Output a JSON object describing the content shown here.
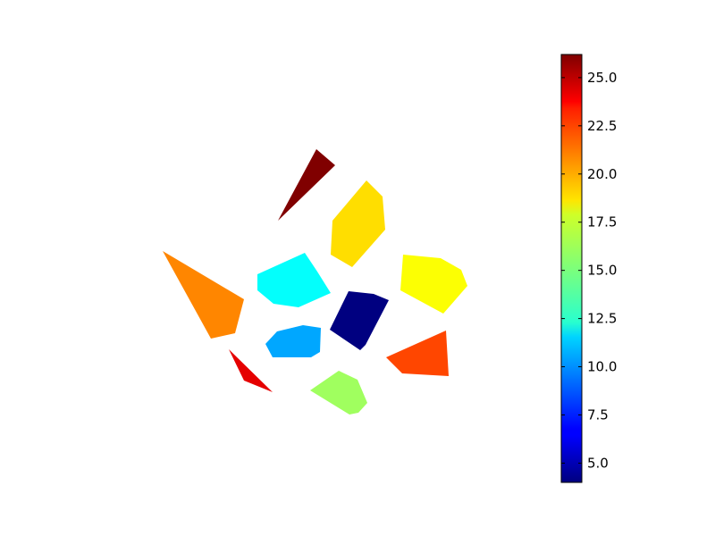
{
  "chart_data": {
    "type": "polygon-colormap",
    "title": "",
    "colormap": "jet",
    "colorbar": {
      "range": [
        4.0,
        26.2
      ],
      "ticks": [
        5.0,
        7.5,
        10.0,
        12.5,
        15.0,
        17.5,
        20.0,
        22.5,
        25.0
      ],
      "tick_labels": [
        "5.0",
        "7.5",
        "10.0",
        "12.5",
        "15.0",
        "17.5",
        "20.0",
        "22.5",
        "25.0"
      ]
    },
    "axes_visible": false,
    "polygons": [
      {
        "id": "dark-red-triangle",
        "value": 26.2,
        "vertices": [
          [
            354,
            167
          ],
          [
            375,
            185
          ],
          [
            311,
            247
          ]
        ]
      },
      {
        "id": "yellow-hexagon-top",
        "value": 18.6,
        "vertices": [
          [
            372,
            247
          ],
          [
            410,
            202
          ],
          [
            428,
            220
          ],
          [
            431,
            257
          ],
          [
            394,
            299
          ],
          [
            370,
            285
          ]
        ]
      },
      {
        "id": "lime-polygon-right",
        "value": 17.8,
        "vertices": [
          [
            451,
            285
          ],
          [
            493,
            289
          ],
          [
            516,
            302
          ],
          [
            523,
            320
          ],
          [
            496,
            351
          ],
          [
            448,
            325
          ]
        ]
      },
      {
        "id": "cyan-polygon-center",
        "value": 12.4,
        "vertices": [
          [
            288,
            307
          ],
          [
            341,
            283
          ],
          [
            355,
            304
          ],
          [
            370,
            328
          ],
          [
            334,
            344
          ],
          [
            306,
            340
          ],
          [
            288,
            325
          ]
        ]
      },
      {
        "id": "amber-triangle-left",
        "value": 20.5,
        "vertices": [
          [
            182,
            281
          ],
          [
            273,
            335
          ],
          [
            263,
            373
          ],
          [
            236,
            379
          ]
        ]
      },
      {
        "id": "navy-quad-center",
        "value": 4.0,
        "vertices": [
          [
            390,
            326
          ],
          [
            418,
            329
          ],
          [
            435,
            336
          ],
          [
            409,
            386
          ],
          [
            403,
            392
          ],
          [
            369,
            369
          ]
        ]
      },
      {
        "id": "sky-blue-polygon",
        "value": 10.4,
        "vertices": [
          [
            310,
            371
          ],
          [
            339,
            364
          ],
          [
            359,
            367
          ],
          [
            358,
            394
          ],
          [
            348,
            400
          ],
          [
            305,
            400
          ],
          [
            297,
            385
          ]
        ]
      },
      {
        "id": "orange-quad",
        "value": 21.9,
        "vertices": [
          [
            432,
            400
          ],
          [
            499,
            370
          ],
          [
            502,
            421
          ],
          [
            450,
            418
          ]
        ]
      },
      {
        "id": "red-triangle-small",
        "value": 24.0,
        "vertices": [
          [
            256,
            391
          ],
          [
            305,
            439
          ],
          [
            273,
            426
          ]
        ]
      },
      {
        "id": "green-polygon-bottom",
        "value": 15.8,
        "vertices": [
          [
            347,
            437
          ],
          [
            379,
            415
          ],
          [
            400,
            425
          ],
          [
            411,
            451
          ],
          [
            401,
            462
          ],
          [
            391,
            464
          ]
        ]
      }
    ]
  }
}
